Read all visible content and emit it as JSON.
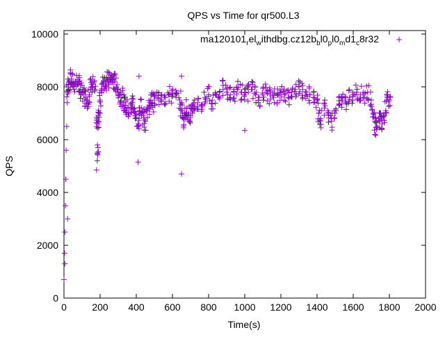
{
  "chart_data": {
    "type": "scatter",
    "title": "QPS vs Time for qr500.L3",
    "xlabel": "Time(s)",
    "ylabel": "QPS",
    "xlim": [
      0,
      2000
    ],
    "ylim": [
      0,
      10000
    ],
    "xticks": [
      "0",
      "200",
      "400",
      "600",
      "800",
      "1000",
      "1200",
      "1400",
      "1600",
      "1800",
      "2000"
    ],
    "yticks": [
      "0",
      "2000",
      "4000",
      "6000",
      "8000",
      "10000"
    ],
    "grid": false,
    "legend_position": "top-right",
    "series": [
      {
        "name": "ma120101_rel_withdbg.cz12b_bl0_pl0_md1_c8r32",
        "legend_parts": [
          [
            "ma120101",
            ""
          ],
          [
            "r",
            "sub"
          ],
          [
            "el",
            ""
          ],
          [
            "w",
            "sub"
          ],
          [
            "ithdbg.cz12b",
            ""
          ],
          [
            "b",
            "sub"
          ],
          [
            "l0",
            ""
          ],
          [
            "p",
            "sub"
          ],
          [
            "l0",
            ""
          ],
          [
            "m",
            "sub"
          ],
          [
            "d1",
            ""
          ],
          [
            "c",
            "sub"
          ],
          [
            "8r32",
            ""
          ]
        ],
        "color": "#9400d3",
        "marker": "plus",
        "points": [
          [
            0,
            700
          ],
          [
            3,
            1700
          ],
          [
            5,
            2500
          ],
          [
            8,
            3500
          ],
          [
            10,
            4500
          ],
          [
            12,
            5600
          ],
          [
            15,
            6500
          ],
          [
            18,
            7400
          ],
          [
            20,
            7800
          ],
          [
            25,
            8100
          ],
          [
            30,
            8200
          ],
          [
            40,
            8300
          ],
          [
            50,
            8200
          ],
          [
            60,
            8100
          ],
          [
            70,
            8200
          ],
          [
            80,
            8100
          ],
          [
            90,
            7900
          ],
          [
            100,
            7800
          ],
          [
            110,
            7700
          ],
          [
            120,
            7600
          ],
          [
            130,
            7500
          ],
          [
            140,
            7700
          ],
          [
            150,
            8000
          ],
          [
            160,
            8100
          ],
          [
            170,
            7900
          ],
          [
            180,
            6500
          ],
          [
            185,
            5500
          ],
          [
            190,
            6700
          ],
          [
            195,
            7000
          ],
          [
            200,
            7500
          ],
          [
            210,
            8100
          ],
          [
            220,
            8200
          ],
          [
            230,
            8200
          ],
          [
            240,
            8250
          ],
          [
            250,
            8200
          ],
          [
            260,
            8300
          ],
          [
            270,
            8250
          ],
          [
            280,
            8200
          ],
          [
            290,
            8000
          ],
          [
            300,
            7900
          ],
          [
            310,
            7700
          ],
          [
            320,
            7600
          ],
          [
            330,
            7400
          ],
          [
            340,
            7300
          ],
          [
            350,
            7200
          ],
          [
            360,
            7000
          ],
          [
            370,
            7200
          ],
          [
            380,
            7400
          ],
          [
            390,
            7200
          ],
          [
            400,
            6800
          ],
          [
            410,
            6600
          ],
          [
            420,
            7000
          ],
          [
            430,
            7200
          ],
          [
            440,
            6900
          ],
          [
            450,
            6700
          ],
          [
            460,
            7100
          ],
          [
            470,
            7300
          ],
          [
            480,
            7500
          ],
          [
            490,
            7400
          ],
          [
            500,
            7500
          ],
          [
            520,
            7600
          ],
          [
            540,
            7700
          ],
          [
            560,
            7600
          ],
          [
            580,
            7700
          ],
          [
            600,
            7650
          ],
          [
            620,
            7600
          ],
          [
            640,
            7500
          ],
          [
            650,
            7100
          ],
          [
            660,
            6800
          ],
          [
            670,
            6900
          ],
          [
            680,
            7200
          ],
          [
            690,
            7000
          ],
          [
            700,
            6900
          ],
          [
            710,
            7000
          ],
          [
            720,
            7200
          ],
          [
            740,
            7400
          ],
          [
            760,
            7300
          ],
          [
            780,
            7600
          ],
          [
            800,
            7700
          ],
          [
            820,
            7500
          ],
          [
            840,
            7700
          ],
          [
            860,
            7800
          ],
          [
            880,
            7900
          ],
          [
            900,
            7800
          ],
          [
            920,
            7700
          ],
          [
            940,
            7800
          ],
          [
            960,
            7900
          ],
          [
            980,
            7800
          ],
          [
            1000,
            7700
          ],
          [
            1020,
            7800
          ],
          [
            1040,
            7900
          ],
          [
            1060,
            7700
          ],
          [
            1080,
            7600
          ],
          [
            1100,
            7700
          ],
          [
            1120,
            7800
          ],
          [
            1140,
            7700
          ],
          [
            1160,
            7600
          ],
          [
            1180,
            7700
          ],
          [
            1200,
            7800
          ],
          [
            1220,
            7700
          ],
          [
            1240,
            7600
          ],
          [
            1260,
            7800
          ],
          [
            1280,
            7900
          ],
          [
            1300,
            8000
          ],
          [
            1320,
            7900
          ],
          [
            1340,
            7800
          ],
          [
            1360,
            7700
          ],
          [
            1380,
            7600
          ],
          [
            1400,
            7500
          ],
          [
            1410,
            7000
          ],
          [
            1420,
            6800
          ],
          [
            1440,
            7200
          ],
          [
            1460,
            7000
          ],
          [
            1480,
            6700
          ],
          [
            1500,
            7000
          ],
          [
            1520,
            7300
          ],
          [
            1540,
            7500
          ],
          [
            1560,
            7400
          ],
          [
            1580,
            7600
          ],
          [
            1600,
            7700
          ],
          [
            1620,
            7800
          ],
          [
            1640,
            7700
          ],
          [
            1660,
            7600
          ],
          [
            1680,
            7800
          ],
          [
            1700,
            7500
          ],
          [
            1710,
            7000
          ],
          [
            1720,
            6700
          ],
          [
            1730,
            6500
          ],
          [
            1740,
            6800
          ],
          [
            1750,
            7000
          ],
          [
            1760,
            6600
          ],
          [
            1770,
            6900
          ],
          [
            1780,
            7100
          ],
          [
            1790,
            7600
          ],
          [
            1800,
            7500
          ],
          [
            180,
            4850
          ],
          [
            185,
            5800
          ],
          [
            410,
            5150
          ],
          [
            415,
            8400
          ],
          [
            650,
            4700
          ],
          [
            650,
            8400
          ],
          [
            1000,
            6350
          ],
          [
            1720,
            6200
          ],
          [
            410,
            6500
          ],
          [
            20,
            3000
          ],
          [
            5,
            1300
          ]
        ]
      }
    ]
  }
}
